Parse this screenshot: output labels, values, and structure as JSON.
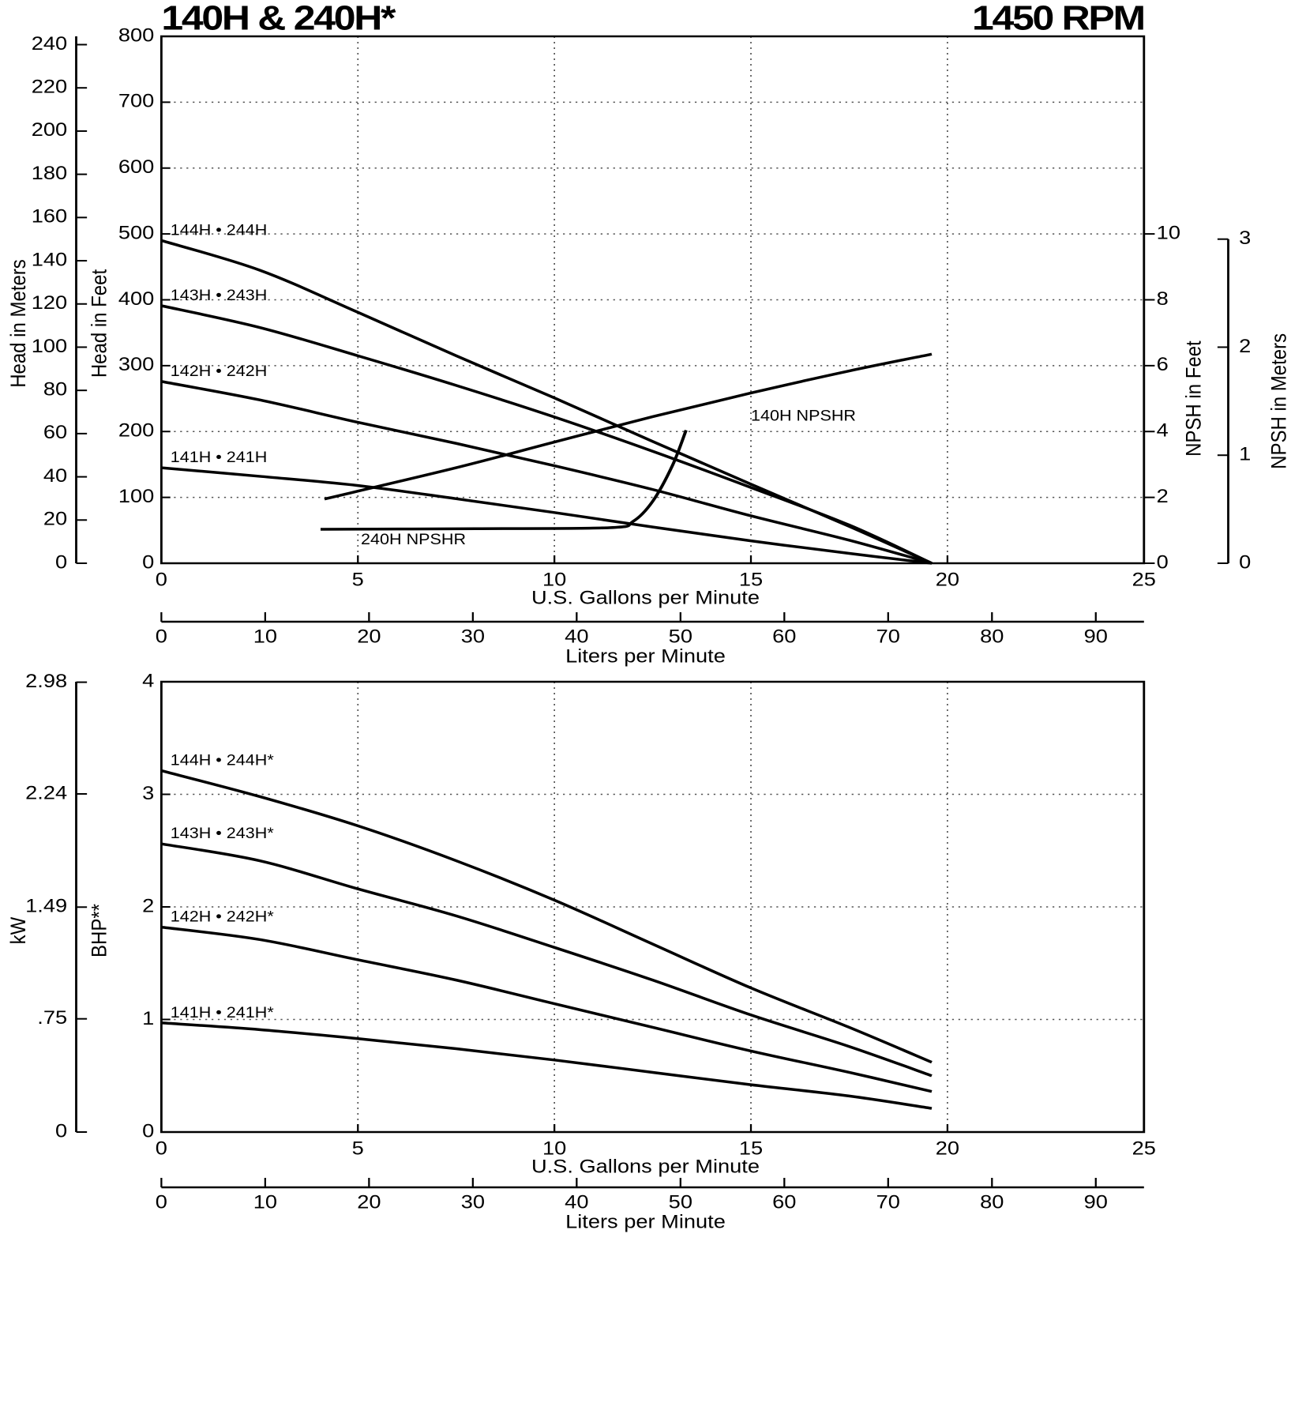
{
  "chart_data": [
    {
      "type": "line",
      "title": "140H & 240H*",
      "subtitle": "1450 RPM",
      "grid": true,
      "xlabel": "U.S. Gallons per Minute",
      "xlim": [
        0,
        25
      ],
      "xticks": [
        0,
        5,
        10,
        15,
        20,
        25
      ],
      "x2label": "Liters per Minute",
      "x2lim": [
        0,
        94.64
      ],
      "x2ticks": [
        0,
        10,
        20,
        30,
        40,
        50,
        60,
        70,
        80,
        90
      ],
      "ylabel": "Head in Feet",
      "ylim": [
        0,
        800
      ],
      "yticks": [
        0,
        100,
        200,
        300,
        400,
        500,
        600,
        700,
        800
      ],
      "yleft_label": "Head in Meters",
      "yleft_lim": [
        0,
        243.84
      ],
      "yleft_ticks": [
        0,
        20,
        40,
        60,
        80,
        100,
        120,
        140,
        160,
        180,
        200,
        220,
        240
      ],
      "y2label": "NPSH in Feet",
      "y2lim": [
        0,
        16
      ],
      "y2ticks": [
        0,
        2,
        4,
        6,
        8,
        10
      ],
      "yright_label": "NPSH in Meters",
      "yright_lim": [
        0,
        4.877
      ],
      "yright_ticks": [
        0,
        1,
        2,
        3
      ],
      "series": [
        {
          "name": "144H • 244H",
          "color": "#000000",
          "x": [
            0,
            2.5,
            5,
            7.5,
            10,
            12.5,
            15,
            17.5,
            19.6
          ],
          "values": [
            490,
            445,
            381,
            315,
            251,
            185,
            120,
            56,
            0
          ]
        },
        {
          "name": "143H • 243H",
          "color": "#000000",
          "x": [
            0,
            2.5,
            5,
            7.5,
            10,
            12.5,
            15,
            17.5,
            19.6
          ],
          "values": [
            391,
            358,
            315,
            270,
            222,
            170,
            115,
            58,
            0
          ]
        },
        {
          "name": "142H • 242H",
          "color": "#000000",
          "x": [
            0,
            2.5,
            5,
            7.5,
            10,
            12.5,
            15,
            17.5,
            19.6
          ],
          "values": [
            276,
            248,
            214,
            182,
            148,
            112,
            72,
            35,
            0
          ]
        },
        {
          "name": "141H • 241H",
          "color": "#000000",
          "x": [
            0,
            2.5,
            5,
            7.5,
            10,
            12.5,
            15,
            17.5,
            19.6
          ],
          "values": [
            145,
            132,
            118,
            98,
            77,
            55,
            34,
            15,
            0
          ]
        },
        {
          "name": "140H NPSHR",
          "color": "#000000",
          "axis": "y2",
          "x": [
            4.15,
            7.5,
            10,
            12.5,
            15,
            17.5,
            19.6
          ],
          "values": [
            1.95,
            2.9,
            3.68,
            4.45,
            5.17,
            5.84,
            6.35
          ]
        },
        {
          "name": "240H NPSHR",
          "color": "#000000",
          "axis": "y2",
          "x": [
            4.05,
            8,
            11.4,
            12,
            12.5,
            13,
            13.35
          ],
          "values": [
            1.03,
            1.05,
            1.08,
            1.27,
            1.88,
            2.96,
            4.04
          ]
        }
      ]
    },
    {
      "type": "line",
      "grid": true,
      "xlabel": "U.S. Gallons per Minute",
      "xlim": [
        0,
        25
      ],
      "xticks": [
        0,
        5,
        10,
        15,
        20,
        25
      ],
      "x2label": "Liters per Minute",
      "x2lim": [
        0,
        94.64
      ],
      "x2ticks": [
        0,
        10,
        20,
        30,
        40,
        50,
        60,
        70,
        80,
        90
      ],
      "ylabel": "BHP**",
      "ylim": [
        0,
        4
      ],
      "yticks": [
        0,
        1,
        2,
        3,
        4
      ],
      "yleft_label": "kW",
      "yleft_lim": [
        0,
        2.983
      ],
      "yleft_ticks": [
        0,
        {
          "value": 0.75,
          "label": ".75"
        },
        1.49,
        2.24,
        2.98
      ],
      "series": [
        {
          "name": "144H • 244H*",
          "color": "#000000",
          "x": [
            0,
            2.5,
            5,
            7.5,
            10,
            12.5,
            15,
            17.5,
            19.6
          ],
          "values": [
            3.21,
            2.98,
            2.72,
            2.41,
            2.06,
            1.67,
            1.28,
            0.93,
            0.62
          ]
        },
        {
          "name": "143H • 243H*",
          "color": "#000000",
          "x": [
            0,
            2.5,
            5,
            7.5,
            10,
            12.5,
            15,
            17.5,
            19.6
          ],
          "values": [
            2.56,
            2.41,
            2.16,
            1.92,
            1.64,
            1.35,
            1.04,
            0.76,
            0.5
          ]
        },
        {
          "name": "142H • 242H*",
          "color": "#000000",
          "x": [
            0,
            2.5,
            5,
            7.5,
            10,
            12.5,
            15,
            17.5,
            19.6
          ],
          "values": [
            1.82,
            1.71,
            1.53,
            1.35,
            1.14,
            0.93,
            0.72,
            0.53,
            0.36
          ]
        },
        {
          "name": "141H • 241H*",
          "color": "#000000",
          "x": [
            0,
            2.5,
            5,
            7.5,
            10,
            12.5,
            15,
            17.5,
            19.6
          ],
          "values": [
            0.97,
            0.91,
            0.83,
            0.74,
            0.64,
            0.53,
            0.42,
            0.32,
            0.21
          ]
        }
      ]
    }
  ]
}
